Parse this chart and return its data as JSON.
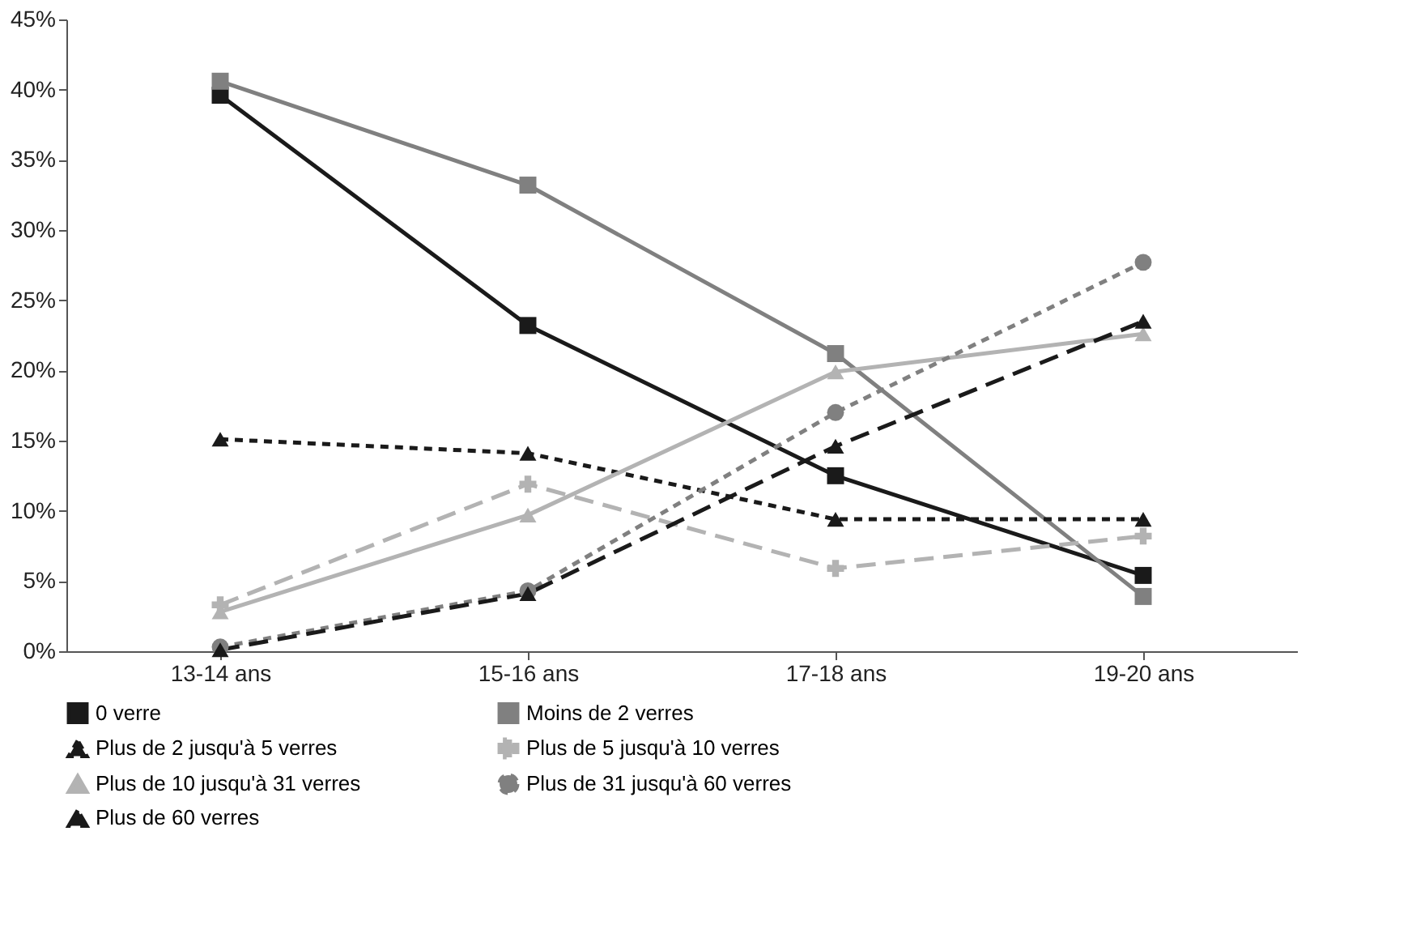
{
  "chart_data": {
    "type": "line",
    "categories": [
      "13-14 ans",
      "15-16 ans",
      "17-18 ans",
      "19-20 ans"
    ],
    "series": [
      {
        "name": "0 verre",
        "color": "#1a1a1a",
        "marker": "square",
        "line_style": "solid",
        "values": [
          39.6,
          23.2,
          12.5,
          5.4
        ]
      },
      {
        "name": "Moins de 2 verres",
        "color": "#808080",
        "marker": "square",
        "line_style": "solid",
        "values": [
          40.6,
          33.2,
          21.2,
          3.9
        ]
      },
      {
        "name": "Plus de 2 jusqu'à 5 verres",
        "color": "#1a1a1a",
        "marker": "triangle",
        "line_style": "dotted",
        "values": [
          15.1,
          14.1,
          9.4,
          9.4
        ]
      },
      {
        "name": "Plus de 5 jusqu'à 10 verres",
        "color": "#b3b3b3",
        "marker": "cross",
        "line_style": "dashed",
        "values": [
          3.3,
          11.9,
          5.9,
          8.2
        ]
      },
      {
        "name": "Plus de 10 jusqu'à 31 verres",
        "color": "#b3b3b3",
        "marker": "triangle",
        "line_style": "solid",
        "values": [
          2.8,
          9.7,
          19.9,
          22.6
        ]
      },
      {
        "name": "Plus de 31 jusqu'à 60 verres",
        "color": "#808080",
        "marker": "circle",
        "line_style": "dotted",
        "values": [
          0.3,
          4.3,
          17.0,
          27.7
        ]
      },
      {
        "name": "Plus de 60 verres",
        "color": "#1a1a1a",
        "marker": "triangle",
        "line_style": "dashed",
        "values": [
          0.1,
          4.1,
          14.6,
          23.5
        ]
      }
    ],
    "ylim": [
      0,
      45
    ],
    "yticks": [
      {
        "value": 0,
        "label": "0%"
      },
      {
        "value": 5,
        "label": "5%"
      },
      {
        "value": 10,
        "label": "10%"
      },
      {
        "value": 15,
        "label": "15%"
      },
      {
        "value": 20,
        "label": "20%"
      },
      {
        "value": 25,
        "label": "25%"
      },
      {
        "value": 30,
        "label": "30%"
      },
      {
        "value": 35,
        "label": "35%"
      },
      {
        "value": 40,
        "label": "40%"
      },
      {
        "value": 45,
        "label": "45%"
      }
    ],
    "grid": false,
    "legend": "bottom"
  }
}
